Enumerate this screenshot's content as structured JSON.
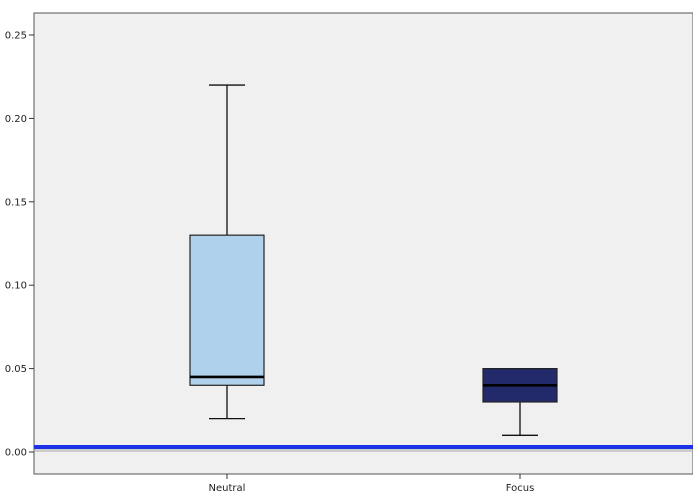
{
  "chart_data": {
    "type": "boxplot",
    "title": "",
    "xlabel": "",
    "ylabel": "",
    "ylim": [
      -0.015,
      0.26
    ],
    "yticks": [
      "0.00",
      "0.05",
      "0.10",
      "0.15",
      "0.20",
      "0.25"
    ],
    "categories": [
      "Neutral",
      "Focus"
    ],
    "boxes": [
      {
        "category": "Neutral",
        "min": 0.02,
        "q1": 0.04,
        "median": 0.045,
        "q3": 0.13,
        "max": 0.22,
        "color": "#b0d1ec"
      },
      {
        "category": "Focus",
        "min": 0.01,
        "q1": 0.03,
        "median": 0.04,
        "q3": 0.05,
        "max": 0.05,
        "color": "#232a6b"
      }
    ],
    "reference_line": {
      "y": 0.003,
      "color": "#1a33e6"
    },
    "plot_background": "#f0f0f0",
    "grid": false
  }
}
